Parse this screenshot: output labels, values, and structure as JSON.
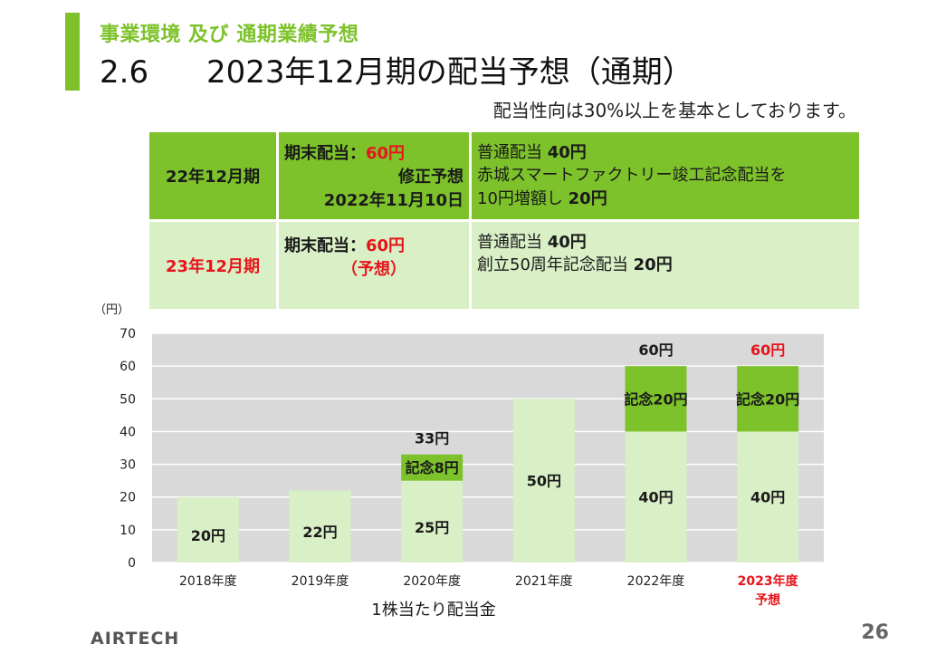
{
  "header": {
    "subtitle": "事業環境 及び 通期業績予想",
    "section_number": "2.6",
    "title": "2023年12月期の配当予想（通期）",
    "policy": "配当性向は30%以上を基本としております。"
  },
  "table": {
    "rows": [
      {
        "period": "22年12月期",
        "col2_line1_label": "期末配当：",
        "col2_line1_value": "60円",
        "col2_line2": "修正予想",
        "col2_line3": "2022年11月10日",
        "col3_line1_text": "普通配当 ",
        "col3_line1_value": "40円",
        "col3_line2": "赤城スマートファクトリー竣工記念配当を",
        "col3_line3_text": "10円増額し ",
        "col3_line3_value": "20円"
      },
      {
        "period": "23年12月期",
        "col2_line1_label": "期末配当：",
        "col2_line1_value": "60円",
        "col2_line2": "（予想）",
        "col3_line1_text": "普通配当 ",
        "col3_line1_value": "40円",
        "col3_line2_text": "創立50周年記念配当 ",
        "col3_line2_value": "20円"
      }
    ]
  },
  "chart_data": {
    "type": "bar",
    "stacked": true,
    "ylabel": "（円）",
    "xlabel": "1株当たり配当金",
    "ylim": [
      0,
      70
    ],
    "yticks": [
      0,
      10,
      20,
      30,
      40,
      50,
      60,
      70
    ],
    "categories": [
      "2018年度",
      "2019年度",
      "2020年度",
      "2021年度",
      "2022年度",
      "2023年度"
    ],
    "category_sublabels": [
      "",
      "",
      "",
      "",
      "",
      "予想"
    ],
    "highlight_category_index": 5,
    "series": [
      {
        "values": [
          20,
          22,
          25,
          50,
          40,
          40
        ],
        "color": "#d9efc6",
        "labels": [
          "20円",
          "22円",
          "25円",
          "50円",
          "40円",
          "40円"
        ]
      },
      {
        "values": [
          0,
          0,
          8,
          0,
          20,
          20
        ],
        "color": "#7dc22a",
        "labels": [
          "",
          "",
          "記念8円",
          "",
          "記念20円",
          "記念20円"
        ]
      }
    ],
    "totals": [
      "",
      "",
      "33円",
      "",
      "60円",
      "60円"
    ],
    "grid": true,
    "plot_background": "#d9d9d9"
  },
  "footer": {
    "brand": "AIRTECH",
    "page": "26"
  },
  "colors": {
    "accent": "#7dc22a",
    "light": "#d9efc6",
    "highlight": "#e8141b"
  }
}
